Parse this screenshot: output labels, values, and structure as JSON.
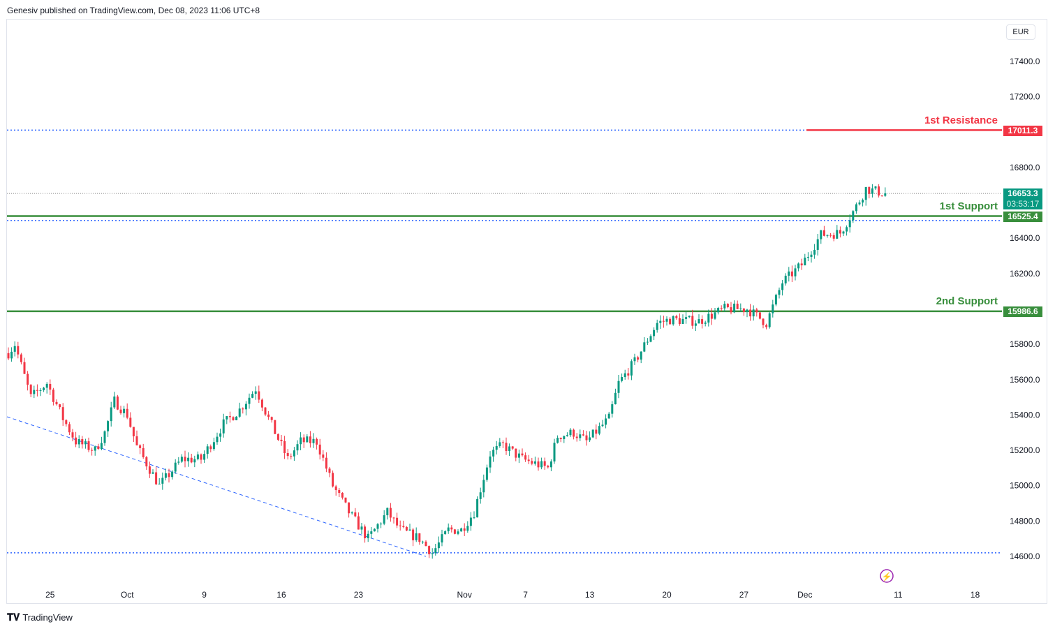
{
  "header": {
    "text": "Genesiv published on TradingView.com, Dec 08, 2023 11:06 UTC+8"
  },
  "currency": "EUR",
  "footer": {
    "brand": "TradingView"
  },
  "colors": {
    "up": "#089981",
    "down": "#f23645",
    "resistance": "#f23645",
    "support": "#388e3c",
    "dotted": "#2962ff"
  },
  "chart_data": {
    "type": "candlestick",
    "ylim": [
      14500,
      17580
    ],
    "y_ticks": [
      "17400.0",
      "17200.0",
      "16800.0",
      "16400.0",
      "16200.0",
      "15800.0",
      "15600.0",
      "15400.0",
      "15200.0",
      "15000.0",
      "14800.0",
      "14600.0"
    ],
    "y_tick_values": [
      17400,
      17200,
      16800,
      16400,
      16200,
      15800,
      15600,
      15400,
      15200,
      15000,
      14800,
      14600
    ],
    "x_ticks": [
      "25",
      "Oct",
      "9",
      "16",
      "23",
      "Nov",
      "7",
      "13",
      "20",
      "27",
      "Dec",
      "11",
      "18"
    ],
    "x_tick_candle": [
      13,
      37,
      61,
      85,
      109,
      142,
      161,
      181,
      205,
      229,
      248,
      277,
      301
    ],
    "price_path": [
      [
        0,
        15750
      ],
      [
        2,
        15800
      ],
      [
        7,
        15500
      ],
      [
        12,
        15580
      ],
      [
        17,
        15380
      ],
      [
        21,
        15250
      ],
      [
        27,
        15200
      ],
      [
        30,
        15300
      ],
      [
        33,
        15480
      ],
      [
        37,
        15400
      ],
      [
        40,
        15220
      ],
      [
        47,
        15000
      ],
      [
        54,
        15150
      ],
      [
        60,
        15150
      ],
      [
        67,
        15350
      ],
      [
        72,
        15430
      ],
      [
        77,
        15550
      ],
      [
        81,
        15380
      ],
      [
        87,
        15150
      ],
      [
        91,
        15250
      ],
      [
        96,
        15250
      ],
      [
        101,
        15000
      ],
      [
        106,
        14850
      ],
      [
        112,
        14700
      ],
      [
        118,
        14850
      ],
      [
        122,
        14750
      ],
      [
        128,
        14700
      ],
      [
        132,
        14620
      ],
      [
        137,
        14750
      ],
      [
        141,
        14750
      ],
      [
        145,
        14850
      ],
      [
        150,
        15180
      ],
      [
        154,
        15230
      ],
      [
        160,
        15150
      ],
      [
        168,
        15100
      ],
      [
        171,
        15280
      ],
      [
        176,
        15300
      ],
      [
        180,
        15250
      ],
      [
        187,
        15380
      ],
      [
        190,
        15580
      ],
      [
        195,
        15700
      ],
      [
        202,
        15920
      ],
      [
        206,
        15940
      ],
      [
        215,
        15930
      ],
      [
        223,
        16000
      ],
      [
        230,
        16000
      ],
      [
        236,
        15920
      ],
      [
        241,
        16150
      ],
      [
        247,
        16250
      ],
      [
        253,
        16420
      ],
      [
        259,
        16430
      ],
      [
        264,
        16580
      ],
      [
        267,
        16680
      ],
      [
        273,
        16653
      ]
    ],
    "levels": [
      {
        "label": "1st Resistance",
        "value": "17011.3",
        "price": 17011.3,
        "type": "resistance"
      },
      {
        "label": "1st Support",
        "value": "16525.4",
        "price": 16525.4,
        "type": "support"
      },
      {
        "label": "2nd Support",
        "value": "15986.6",
        "price": 15986.6,
        "type": "support"
      }
    ],
    "dotted_levels": [
      17011.3,
      16500,
      14620
    ],
    "trendline": [
      [
        0,
        15390
      ],
      [
        130,
        14600
      ]
    ],
    "last_price": {
      "value": "16653.3",
      "price": 16653.3,
      "countdown": "03:53:17"
    }
  }
}
